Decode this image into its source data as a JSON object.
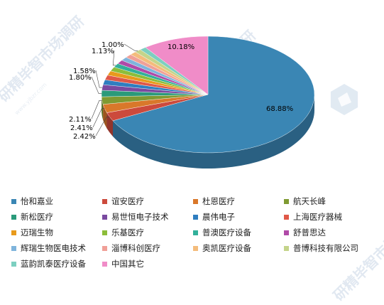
{
  "chart_data": {
    "type": "pie",
    "title": "",
    "slices": [
      {
        "label": "怡和嘉业",
        "value": 68.88,
        "value_label": "68.88%",
        "color": "#3a86b4"
      },
      {
        "label": "谊安医疗",
        "value": 2.42,
        "value_label": "2.42%",
        "color": "#cc4a3c"
      },
      {
        "label": "杜恩医疗",
        "value": 2.41,
        "value_label": "2.41%",
        "color": "#d9782a"
      },
      {
        "label": "航天长峰",
        "value": 2.11,
        "value_label": "2.11%",
        "color": "#7f9a32"
      },
      {
        "label": "新松医疗",
        "value": 1.8,
        "value_label": "1.80%",
        "color": "#2a9a7a"
      },
      {
        "label": "易世恒电子技术",
        "value": 1.58,
        "value_label": "1.58%",
        "color": "#7a4aa0"
      },
      {
        "label": "晨伟电子",
        "value": 1.4,
        "value_label": "",
        "color": "#2f7ec0"
      },
      {
        "label": "上海医疗器械",
        "value": 1.35,
        "value_label": "",
        "color": "#e05848"
      },
      {
        "label": "迈瑞生物",
        "value": 1.25,
        "value_label": "",
        "color": "#e89a1c"
      },
      {
        "label": "乐基医疗",
        "value": 1.2,
        "value_label": "",
        "color": "#8cbd3a"
      },
      {
        "label": "普澳医疗设备",
        "value": 1.13,
        "value_label": "1.13%",
        "color": "#32b09a"
      },
      {
        "label": "舒普思达",
        "value": 1.1,
        "value_label": "",
        "color": "#b04aa8"
      },
      {
        "label": "辉瑞生物医电技术",
        "value": 1.05,
        "value_label": "",
        "color": "#7fb4dc"
      },
      {
        "label": "淄博科创医疗",
        "value": 1.04,
        "value_label": "",
        "color": "#f0a098"
      },
      {
        "label": "奥凯医疗设备",
        "value": 1.02,
        "value_label": "",
        "color": "#f4bc7c"
      },
      {
        "label": "普博科技有限公司",
        "value": 1.0,
        "value_label": "1.00%",
        "color": "#c4d48a"
      },
      {
        "label": "蓝韵凯泰医疗设备",
        "value": 1.0,
        "value_label": "",
        "color": "#7ccfc0"
      },
      {
        "label": "中国其它",
        "value": 10.18,
        "value_label": "10.18%",
        "color": "#f08cc8"
      }
    ],
    "legend_placement": "bottom"
  },
  "watermark": {
    "main": "研精毕智市场调研",
    "sub": "www.yjbzr.com"
  }
}
